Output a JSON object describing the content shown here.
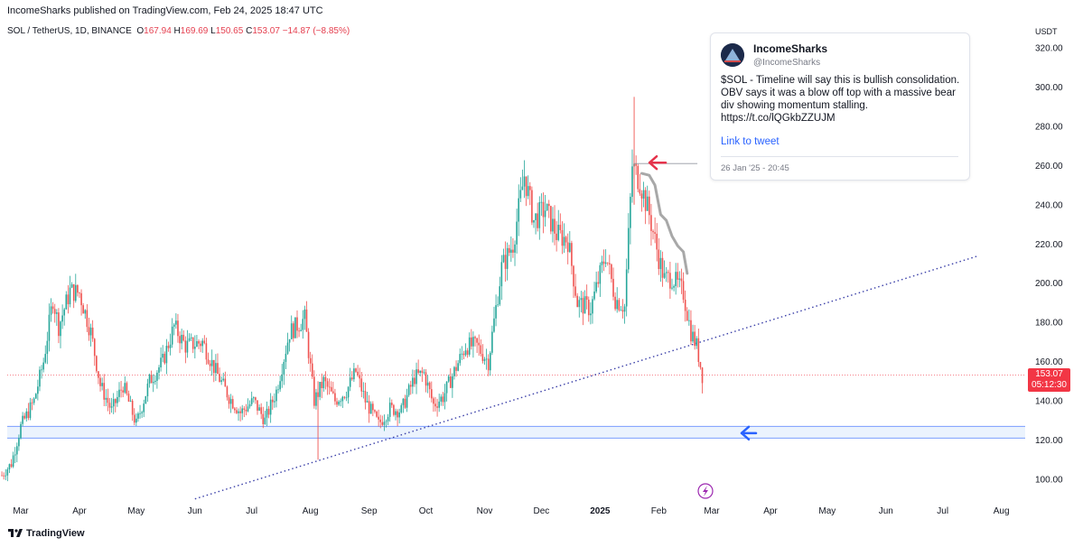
{
  "header": {
    "publisher": "IncomeSharks published on TradingView.com, Feb 24, 2025 18:47 UTC",
    "symbol": "SOL / TetherUS, 1D, BINANCE",
    "open_label": "O",
    "open": "167.94",
    "high_label": "H",
    "high": "169.69",
    "low_label": "L",
    "low": "150.65",
    "close_label": "C",
    "close": "153.07",
    "change": "−14.87 (−8.85%)",
    "currency": "USDT"
  },
  "price_tag": {
    "price": "153.07",
    "countdown": "05:12:30"
  },
  "tweet": {
    "name": "IncomeSharks",
    "handle": "@IncomeSharks",
    "text": "$SOL - Timeline will say this is bullish consolidation. OBV says it was a blow off top with a massive bear div showing momentum stalling. https://t.co/lQGkbZZUJM",
    "link": "Link to tweet",
    "date": "26 Jan '25 - 20:45"
  },
  "footer": {
    "brand": "TradingView"
  },
  "colors": {
    "up": "#26a69a",
    "down": "#ef5350",
    "trend": "#3a3fa8",
    "zone": "#2962ff",
    "arrow_red": "#e5334b",
    "arrow_blue": "#2962ff",
    "projection": "#a8a8a8"
  },
  "chart_data": {
    "type": "candlestick",
    "ylim": [
      92,
      325
    ],
    "y_ticks": [
      100,
      120,
      140,
      160,
      180,
      200,
      220,
      240,
      260,
      280,
      300,
      320
    ],
    "y_tick_labels": [
      "100.00",
      "120.00",
      "140.00",
      "160.00",
      "180.00",
      "200.00",
      "220.00",
      "240.00",
      "260.00",
      "280.00",
      "300.00",
      "320.00"
    ],
    "x_ticks": [
      {
        "date": "2024-03-01",
        "label": "Mar"
      },
      {
        "date": "2024-04-01",
        "label": "Apr"
      },
      {
        "date": "2024-05-01",
        "label": "May"
      },
      {
        "date": "2024-06-01",
        "label": "Jun"
      },
      {
        "date": "2024-07-01",
        "label": "Jul"
      },
      {
        "date": "2024-08-01",
        "label": "Aug"
      },
      {
        "date": "2024-09-01",
        "label": "Sep"
      },
      {
        "date": "2024-10-01",
        "label": "Oct"
      },
      {
        "date": "2024-11-01",
        "label": "Nov"
      },
      {
        "date": "2024-12-01",
        "label": "Dec"
      },
      {
        "date": "2025-01-01",
        "label": "2025",
        "bold": true
      },
      {
        "date": "2025-02-01",
        "label": "Feb"
      },
      {
        "date": "2025-03-01",
        "label": "Mar"
      },
      {
        "date": "2025-04-01",
        "label": "Apr"
      },
      {
        "date": "2025-05-01",
        "label": "May"
      },
      {
        "date": "2025-06-01",
        "label": "Jun"
      },
      {
        "date": "2025-07-01",
        "label": "Jul"
      },
      {
        "date": "2025-08-01",
        "label": "Aug"
      }
    ],
    "price_path": [
      [
        "2024-02-20",
        102
      ],
      [
        "2024-02-25",
        108
      ],
      [
        "2024-03-01",
        127
      ],
      [
        "2024-03-08",
        140
      ],
      [
        "2024-03-13",
        160
      ],
      [
        "2024-03-18",
        192
      ],
      [
        "2024-03-21",
        178
      ],
      [
        "2024-03-27",
        196
      ],
      [
        "2024-04-01",
        195
      ],
      [
        "2024-04-07",
        175
      ],
      [
        "2024-04-12",
        148
      ],
      [
        "2024-04-18",
        135
      ],
      [
        "2024-04-24",
        148
      ],
      [
        "2024-05-01",
        128
      ],
      [
        "2024-05-08",
        150
      ],
      [
        "2024-05-15",
        160
      ],
      [
        "2024-05-21",
        178
      ],
      [
        "2024-05-27",
        168
      ],
      [
        "2024-06-05",
        170
      ],
      [
        "2024-06-12",
        155
      ],
      [
        "2024-06-19",
        142
      ],
      [
        "2024-06-25",
        134
      ],
      [
        "2024-07-02",
        140
      ],
      [
        "2024-07-08",
        130
      ],
      [
        "2024-07-14",
        145
      ],
      [
        "2024-07-21",
        175
      ],
      [
        "2024-07-29",
        182
      ],
      [
        "2024-08-03",
        140
      ],
      [
        "2024-08-08",
        150
      ],
      [
        "2024-08-14",
        140
      ],
      [
        "2024-08-20",
        145
      ],
      [
        "2024-08-25",
        155
      ],
      [
        "2024-08-30",
        140
      ],
      [
        "2024-09-06",
        128
      ],
      [
        "2024-09-12",
        136
      ],
      [
        "2024-09-18",
        135
      ],
      [
        "2024-09-25",
        152
      ],
      [
        "2024-09-30",
        154
      ],
      [
        "2024-10-05",
        138
      ],
      [
        "2024-10-10",
        142
      ],
      [
        "2024-10-16",
        155
      ],
      [
        "2024-10-22",
        168
      ],
      [
        "2024-10-28",
        168
      ],
      [
        "2024-11-03",
        160
      ],
      [
        "2024-11-10",
        208
      ],
      [
        "2024-11-16",
        220
      ],
      [
        "2024-11-22",
        255
      ],
      [
        "2024-11-27",
        232
      ],
      [
        "2024-12-03",
        238
      ],
      [
        "2024-12-09",
        225
      ],
      [
        "2024-12-15",
        222
      ],
      [
        "2024-12-20",
        190
      ],
      [
        "2024-12-27",
        187
      ],
      [
        "2025-01-04",
        215
      ],
      [
        "2025-01-09",
        192
      ],
      [
        "2025-01-14",
        188
      ],
      [
        "2025-01-18",
        260
      ],
      [
        "2025-01-22",
        252
      ],
      [
        "2025-01-27",
        235
      ],
      [
        "2025-02-01",
        213
      ],
      [
        "2025-02-04",
        202
      ],
      [
        "2025-02-08",
        203
      ],
      [
        "2025-02-14",
        195
      ],
      [
        "2025-02-18",
        175
      ],
      [
        "2025-02-21",
        168
      ],
      [
        "2025-02-24",
        153
      ]
    ],
    "trendline": {
      "from": [
        "2024-06-01",
        90
      ],
      "to": [
        "2025-07-20",
        214
      ]
    },
    "support_zone": [
      121,
      127
    ],
    "projection_path": [
      [
        "2025-01-23",
        256
      ],
      [
        "2025-01-27",
        255
      ],
      [
        "2025-01-30",
        250
      ],
      [
        "2025-02-02",
        235
      ],
      [
        "2025-02-05",
        232
      ],
      [
        "2025-02-08",
        224
      ],
      [
        "2025-02-11",
        219
      ],
      [
        "2025-02-14",
        216
      ],
      [
        "2025-02-16",
        205
      ]
    ],
    "last_price": 153.07,
    "peak_marker": [
      "2025-01-19",
      261
    ]
  }
}
